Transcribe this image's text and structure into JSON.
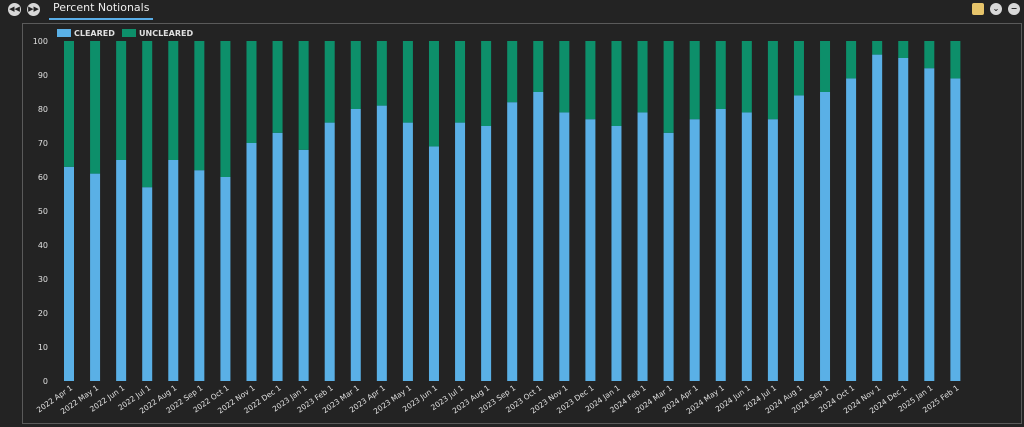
{
  "toolbar": {
    "prev_icon": "rewind-icon",
    "next_icon": "fast-forward-icon",
    "tab_label": "Percent Notionals",
    "note_icon": "note-icon",
    "collapse_icon": "collapse-icon",
    "minimize_icon": "minimize-icon"
  },
  "colors": {
    "cleared": "#5ab0e6",
    "uncleared": "#0d8f6a",
    "background": "#232323",
    "text": "#e0e0e0"
  },
  "chart_data": {
    "type": "bar",
    "stacked": true,
    "title": "",
    "xlabel": "",
    "ylabel": "",
    "ylim": [
      0,
      100
    ],
    "yticks": [
      0,
      10,
      20,
      30,
      40,
      50,
      60,
      70,
      80,
      90,
      100
    ],
    "grid": false,
    "legend_position": "top-left",
    "categories": [
      "2022 Apr 1",
      "2022 May 1",
      "2022 Jun 1",
      "2022 Jul 1",
      "2022 Aug 1",
      "2022 Sep 1",
      "2022 Oct 1",
      "2022 Nov 1",
      "2022 Dec 1",
      "2023 Jan 1",
      "2023 Feb 1",
      "2023 Mar 1",
      "2023 Apr 1",
      "2023 May 1",
      "2023 Jun 1",
      "2023 Jul 1",
      "2023 Aug 1",
      "2023 Sep 1",
      "2023 Oct 1",
      "2023 Nov 1",
      "2023 Dec 1",
      "2024 Jan 1",
      "2024 Feb 1",
      "2024 Mar 1",
      "2024 Apr 1",
      "2024 May 1",
      "2024 Jun 1",
      "2024 Jul 1",
      "2024 Aug 1",
      "2024 Sep 1",
      "2024 Oct 1",
      "2024 Nov 1",
      "2024 Dec 1",
      "2025 Jan 1",
      "2025 Feb 1"
    ],
    "series": [
      {
        "name": "CLEARED",
        "values": [
          63,
          61,
          65,
          57,
          65,
          62,
          60,
          70,
          73,
          68,
          76,
          80,
          81,
          76,
          69,
          76,
          75,
          82,
          85,
          79,
          77,
          75,
          79,
          73,
          77,
          80,
          79,
          77,
          84,
          85,
          89,
          96,
          95,
          92,
          89
        ]
      },
      {
        "name": "UNCLEARED",
        "values": [
          37,
          39,
          35,
          43,
          35,
          38,
          40,
          30,
          27,
          32,
          24,
          20,
          19,
          24,
          31,
          24,
          25,
          18,
          15,
          21,
          23,
          25,
          21,
          27,
          23,
          20,
          21,
          23,
          16,
          15,
          11,
          4,
          5,
          8,
          11
        ]
      }
    ]
  }
}
